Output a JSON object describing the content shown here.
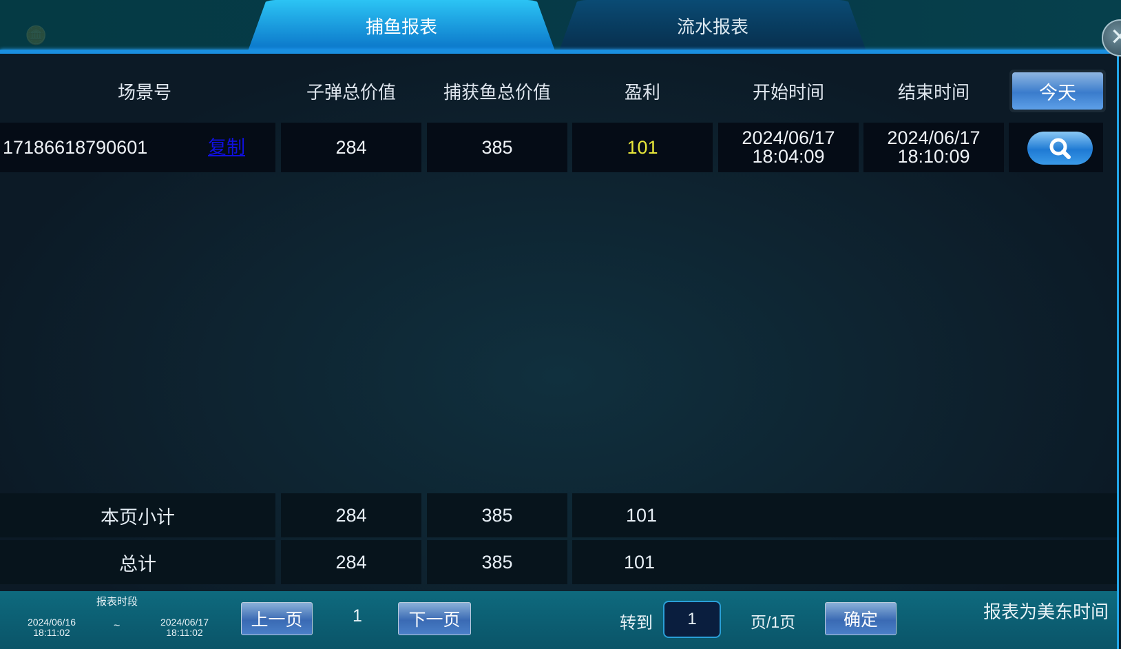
{
  "tabs": [
    {
      "label": "捕鱼报表",
      "active": true
    },
    {
      "label": "流水报表",
      "active": false
    }
  ],
  "columns": [
    "场景号",
    "子弹总价值",
    "捕获鱼总价值",
    "盈利",
    "开始时间",
    "结束时间"
  ],
  "today_button": "今天",
  "rows": [
    {
      "scene_id": "17186618790601",
      "copy_label": "复制",
      "bullet_total": "284",
      "catch_total": "385",
      "profit": "101",
      "start_date": "2024/06/17",
      "start_time": "18:04:09",
      "end_date": "2024/06/17",
      "end_time": "18:10:09"
    }
  ],
  "summary": [
    {
      "label": "本页小计",
      "bullet_total": "284",
      "catch_total": "385",
      "profit": "101"
    },
    {
      "label": "总计",
      "bullet_total": "284",
      "catch_total": "385",
      "profit": "101"
    }
  ],
  "footer": {
    "period_label": "报表时段",
    "from_date": "2024/06/16",
    "from_time": "18:11:02",
    "separator": "~",
    "to_date": "2024/06/17",
    "to_time": "18:11:02",
    "prev": "上一页",
    "page": "1",
    "next": "下一页",
    "goto": "转到",
    "goto_value": "1",
    "page_of": "页/1页",
    "confirm": "确定",
    "timezone_note": "报表为美东时间"
  },
  "colors": {
    "profit": "#e8e83a",
    "copy_link": "#1010e0",
    "accent": "#1a8fe0"
  }
}
